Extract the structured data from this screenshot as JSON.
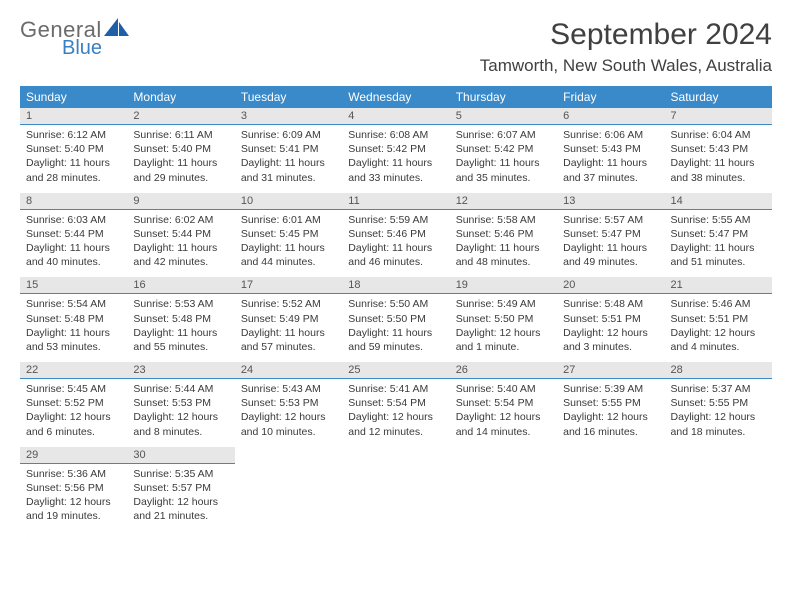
{
  "brand": {
    "general": "General",
    "blue": "Blue",
    "sail_color": "#1f5fa8"
  },
  "header": {
    "month_title": "September 2024",
    "location": "Tamworth, New South Wales, Australia"
  },
  "colors": {
    "header_bg": "#3a89c9",
    "header_text": "#ffffff",
    "daynum_bg": "#e7e7e7",
    "daynum_border": "#3a89c9",
    "body_text": "#3a3a3a"
  },
  "day_headers": [
    "Sunday",
    "Monday",
    "Tuesday",
    "Wednesday",
    "Thursday",
    "Friday",
    "Saturday"
  ],
  "weeks": [
    [
      {
        "n": "1",
        "sunrise": "Sunrise: 6:12 AM",
        "sunset": "Sunset: 5:40 PM",
        "day1": "Daylight: 11 hours",
        "day2": "and 28 minutes."
      },
      {
        "n": "2",
        "sunrise": "Sunrise: 6:11 AM",
        "sunset": "Sunset: 5:40 PM",
        "day1": "Daylight: 11 hours",
        "day2": "and 29 minutes."
      },
      {
        "n": "3",
        "sunrise": "Sunrise: 6:09 AM",
        "sunset": "Sunset: 5:41 PM",
        "day1": "Daylight: 11 hours",
        "day2": "and 31 minutes."
      },
      {
        "n": "4",
        "sunrise": "Sunrise: 6:08 AM",
        "sunset": "Sunset: 5:42 PM",
        "day1": "Daylight: 11 hours",
        "day2": "and 33 minutes."
      },
      {
        "n": "5",
        "sunrise": "Sunrise: 6:07 AM",
        "sunset": "Sunset: 5:42 PM",
        "day1": "Daylight: 11 hours",
        "day2": "and 35 minutes."
      },
      {
        "n": "6",
        "sunrise": "Sunrise: 6:06 AM",
        "sunset": "Sunset: 5:43 PM",
        "day1": "Daylight: 11 hours",
        "day2": "and 37 minutes."
      },
      {
        "n": "7",
        "sunrise": "Sunrise: 6:04 AM",
        "sunset": "Sunset: 5:43 PM",
        "day1": "Daylight: 11 hours",
        "day2": "and 38 minutes."
      }
    ],
    [
      {
        "n": "8",
        "sunrise": "Sunrise: 6:03 AM",
        "sunset": "Sunset: 5:44 PM",
        "day1": "Daylight: 11 hours",
        "day2": "and 40 minutes."
      },
      {
        "n": "9",
        "sunrise": "Sunrise: 6:02 AM",
        "sunset": "Sunset: 5:44 PM",
        "day1": "Daylight: 11 hours",
        "day2": "and 42 minutes."
      },
      {
        "n": "10",
        "sunrise": "Sunrise: 6:01 AM",
        "sunset": "Sunset: 5:45 PM",
        "day1": "Daylight: 11 hours",
        "day2": "and 44 minutes."
      },
      {
        "n": "11",
        "sunrise": "Sunrise: 5:59 AM",
        "sunset": "Sunset: 5:46 PM",
        "day1": "Daylight: 11 hours",
        "day2": "and 46 minutes."
      },
      {
        "n": "12",
        "sunrise": "Sunrise: 5:58 AM",
        "sunset": "Sunset: 5:46 PM",
        "day1": "Daylight: 11 hours",
        "day2": "and 48 minutes."
      },
      {
        "n": "13",
        "sunrise": "Sunrise: 5:57 AM",
        "sunset": "Sunset: 5:47 PM",
        "day1": "Daylight: 11 hours",
        "day2": "and 49 minutes."
      },
      {
        "n": "14",
        "sunrise": "Sunrise: 5:55 AM",
        "sunset": "Sunset: 5:47 PM",
        "day1": "Daylight: 11 hours",
        "day2": "and 51 minutes."
      }
    ],
    [
      {
        "n": "15",
        "sunrise": "Sunrise: 5:54 AM",
        "sunset": "Sunset: 5:48 PM",
        "day1": "Daylight: 11 hours",
        "day2": "and 53 minutes."
      },
      {
        "n": "16",
        "sunrise": "Sunrise: 5:53 AM",
        "sunset": "Sunset: 5:48 PM",
        "day1": "Daylight: 11 hours",
        "day2": "and 55 minutes."
      },
      {
        "n": "17",
        "sunrise": "Sunrise: 5:52 AM",
        "sunset": "Sunset: 5:49 PM",
        "day1": "Daylight: 11 hours",
        "day2": "and 57 minutes."
      },
      {
        "n": "18",
        "sunrise": "Sunrise: 5:50 AM",
        "sunset": "Sunset: 5:50 PM",
        "day1": "Daylight: 11 hours",
        "day2": "and 59 minutes."
      },
      {
        "n": "19",
        "sunrise": "Sunrise: 5:49 AM",
        "sunset": "Sunset: 5:50 PM",
        "day1": "Daylight: 12 hours",
        "day2": "and 1 minute."
      },
      {
        "n": "20",
        "sunrise": "Sunrise: 5:48 AM",
        "sunset": "Sunset: 5:51 PM",
        "day1": "Daylight: 12 hours",
        "day2": "and 3 minutes."
      },
      {
        "n": "21",
        "sunrise": "Sunrise: 5:46 AM",
        "sunset": "Sunset: 5:51 PM",
        "day1": "Daylight: 12 hours",
        "day2": "and 4 minutes."
      }
    ],
    [
      {
        "n": "22",
        "sunrise": "Sunrise: 5:45 AM",
        "sunset": "Sunset: 5:52 PM",
        "day1": "Daylight: 12 hours",
        "day2": "and 6 minutes."
      },
      {
        "n": "23",
        "sunrise": "Sunrise: 5:44 AM",
        "sunset": "Sunset: 5:53 PM",
        "day1": "Daylight: 12 hours",
        "day2": "and 8 minutes."
      },
      {
        "n": "24",
        "sunrise": "Sunrise: 5:43 AM",
        "sunset": "Sunset: 5:53 PM",
        "day1": "Daylight: 12 hours",
        "day2": "and 10 minutes."
      },
      {
        "n": "25",
        "sunrise": "Sunrise: 5:41 AM",
        "sunset": "Sunset: 5:54 PM",
        "day1": "Daylight: 12 hours",
        "day2": "and 12 minutes."
      },
      {
        "n": "26",
        "sunrise": "Sunrise: 5:40 AM",
        "sunset": "Sunset: 5:54 PM",
        "day1": "Daylight: 12 hours",
        "day2": "and 14 minutes."
      },
      {
        "n": "27",
        "sunrise": "Sunrise: 5:39 AM",
        "sunset": "Sunset: 5:55 PM",
        "day1": "Daylight: 12 hours",
        "day2": "and 16 minutes."
      },
      {
        "n": "28",
        "sunrise": "Sunrise: 5:37 AM",
        "sunset": "Sunset: 5:55 PM",
        "day1": "Daylight: 12 hours",
        "day2": "and 18 minutes."
      }
    ],
    [
      {
        "n": "29",
        "sunrise": "Sunrise: 5:36 AM",
        "sunset": "Sunset: 5:56 PM",
        "day1": "Daylight: 12 hours",
        "day2": "and 19 minutes."
      },
      {
        "n": "30",
        "sunrise": "Sunrise: 5:35 AM",
        "sunset": "Sunset: 5:57 PM",
        "day1": "Daylight: 12 hours",
        "day2": "and 21 minutes."
      },
      null,
      null,
      null,
      null,
      null
    ]
  ]
}
